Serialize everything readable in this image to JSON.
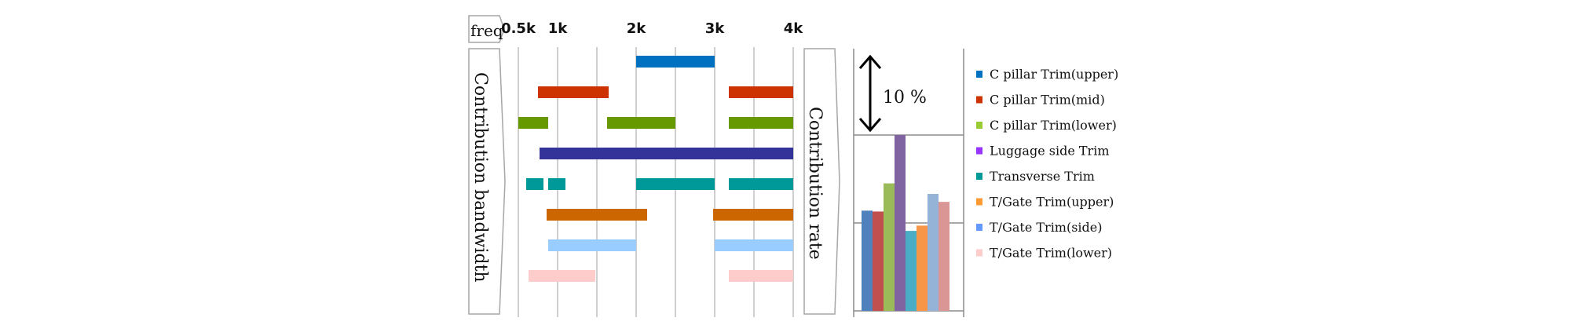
{
  "chart_data": [
    {
      "type": "bar",
      "subtype": "horizontal-range",
      "frequency_label": "freq",
      "axis_label": "Contribution bandwidth",
      "x_ticks": [
        "0.5k",
        "1k",
        "2k",
        "3k",
        "4k"
      ],
      "rows": [
        {
          "component": "C pillar  Trim(upper)",
          "color": "#0070C0",
          "ranges": [
            [
              2,
              3
            ]
          ]
        },
        {
          "component": "C pillar  Trim(mid)",
          "color": "#CC3300",
          "ranges": [
            [
              0.75,
              1.65
            ],
            [
              3.18,
              4
            ]
          ]
        },
        {
          "component": "C pillar  Trim(lower)",
          "color": "#669900",
          "ranges": [
            [
              0.5,
              0.88
            ],
            [
              1.63,
              2.5
            ],
            [
              3.18,
              4
            ]
          ]
        },
        {
          "component": "Luggage side  Trim",
          "color": "#333399",
          "ranges": [
            [
              0.77,
              4
            ]
          ]
        },
        {
          "component": "Transverse  Trim",
          "color": "#009999",
          "ranges": [
            [
              0.6,
              0.82
            ],
            [
              0.88,
              1.1
            ],
            [
              2,
              3
            ],
            [
              3.18,
              4
            ]
          ]
        },
        {
          "component": "T/Gate  Trim(upper)",
          "color": "#CC6600",
          "ranges": [
            [
              0.86,
              2.14
            ],
            [
              2.98,
              4
            ]
          ]
        },
        {
          "component": "T/Gate  Trim(side)",
          "color": "#99CCFF",
          "ranges": [
            [
              0.88,
              2
            ],
            [
              3,
              4
            ]
          ]
        },
        {
          "component": "T/Gate  Trim(lower)",
          "color": "#FFCCCC",
          "ranges": [
            [
              0.63,
              1.48
            ],
            [
              3.18,
              4
            ]
          ]
        }
      ]
    },
    {
      "type": "bar",
      "axis_label": "Contribution rate",
      "scale_annotation": "10 %",
      "unit": "%",
      "ylim": [
        0,
        20
      ],
      "grid": true,
      "legend": "right",
      "categories": [
        "C pillar  Trim(upper)",
        "C pillar  Trim(mid)",
        "C pillar  Trim(lower)",
        "Luggage side  Trim",
        "Transverse  Trim",
        "T/Gate  Trim(upper)",
        "T/Gate  Trim(side)",
        "T/Gate  Trim(lower)"
      ],
      "values": [
        11.4,
        11.3,
        14.5,
        20.0,
        9.1,
        9.7,
        13.3,
        12.4
      ],
      "bar_colors": [
        "#4F81BD",
        "#C0504D",
        "#9BBB59",
        "#8064A2",
        "#4BACC6",
        "#F79646",
        "#95B3D7",
        "#D99694"
      ],
      "legend_colors": [
        "#0070C0",
        "#CC3300",
        "#99CC33",
        "#9933FF",
        "#009999",
        "#FF9933",
        "#6699FF",
        "#FFCCCC"
      ]
    }
  ]
}
